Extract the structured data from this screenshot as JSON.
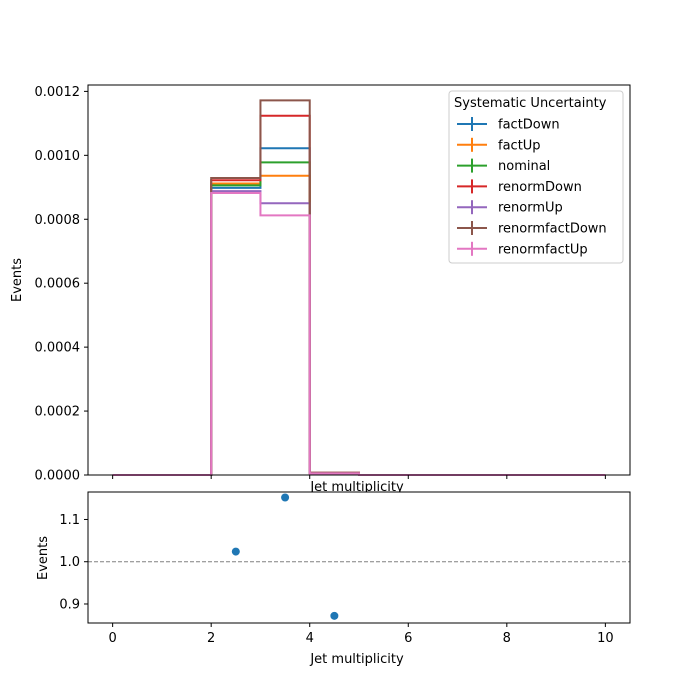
{
  "chart_data": [
    {
      "type": "step",
      "xlabel": "Jet multiplicity",
      "ylabel": "Events",
      "xlim": [
        -0.5,
        10.5
      ],
      "ylim": [
        0,
        0.00122
      ],
      "yticks": [
        0.0,
        0.0002,
        0.0004,
        0.0006,
        0.0008,
        0.001,
        0.0012
      ],
      "ytick_labels": [
        "0.0000",
        "0.0002",
        "0.0004",
        "0.0006",
        "0.0008",
        "0.0010",
        "0.0012"
      ],
      "xticks_shown_labels": false,
      "bin_edges": [
        0,
        1,
        2,
        3,
        4,
        5,
        6,
        7,
        8,
        9,
        10
      ],
      "legend": {
        "title": "Systematic Uncertainty",
        "placement": "top-right"
      },
      "series": [
        {
          "name": "factDown",
          "color": "#1f77b4",
          "values": [
            0,
            0,
            0.000898,
            0.001022,
            6.8e-06,
            0,
            0,
            0,
            0,
            0
          ]
        },
        {
          "name": "factUp",
          "color": "#ff7f0e",
          "values": [
            0,
            0,
            0.000912,
            0.000936,
            5.8e-06,
            0,
            0,
            0,
            0,
            0
          ]
        },
        {
          "name": "nominal",
          "color": "#2ca02c",
          "values": [
            0,
            0,
            0.000906,
            0.000978,
            6.3e-06,
            0,
            0,
            0,
            0,
            0
          ]
        },
        {
          "name": "renormDown",
          "color": "#d62728",
          "values": [
            0,
            0,
            0.000922,
            0.001124,
            7e-06,
            0,
            0,
            0,
            0,
            0
          ]
        },
        {
          "name": "renormUp",
          "color": "#9467bd",
          "values": [
            0,
            0,
            0.000888,
            0.00085,
            5.5e-06,
            0,
            0,
            0,
            0,
            0
          ]
        },
        {
          "name": "renormfactDown",
          "color": "#8c564b",
          "values": [
            0,
            0,
            0.000929,
            0.001172,
            7.2e-06,
            0,
            0,
            0,
            0,
            0
          ]
        },
        {
          "name": "renormfactUp",
          "color": "#e377c2",
          "values": [
            0,
            0,
            0.000882,
            0.000812,
            5.2e-06,
            0,
            0,
            0,
            0,
            0
          ]
        }
      ]
    },
    {
      "type": "scatter",
      "xlabel": "Jet multiplicity",
      "ylabel": "Events",
      "xlim": [
        -0.5,
        10.5
      ],
      "ylim": [
        0.855,
        1.165
      ],
      "xticks": [
        0,
        2,
        4,
        6,
        8,
        10
      ],
      "xtick_labels": [
        "0",
        "2",
        "4",
        "6",
        "8",
        "10"
      ],
      "yticks": [
        0.9,
        1.0,
        1.1
      ],
      "ytick_labels": [
        "0.9",
        "1.0",
        "1.1"
      ],
      "reference_line": {
        "y": 1.0,
        "style": "dashed",
        "color": "#808080"
      },
      "points": [
        {
          "x": 2.5,
          "y": 1.024
        },
        {
          "x": 3.5,
          "y": 1.152
        },
        {
          "x": 4.5,
          "y": 0.872
        }
      ],
      "marker_color": "#1f77b4"
    }
  ]
}
